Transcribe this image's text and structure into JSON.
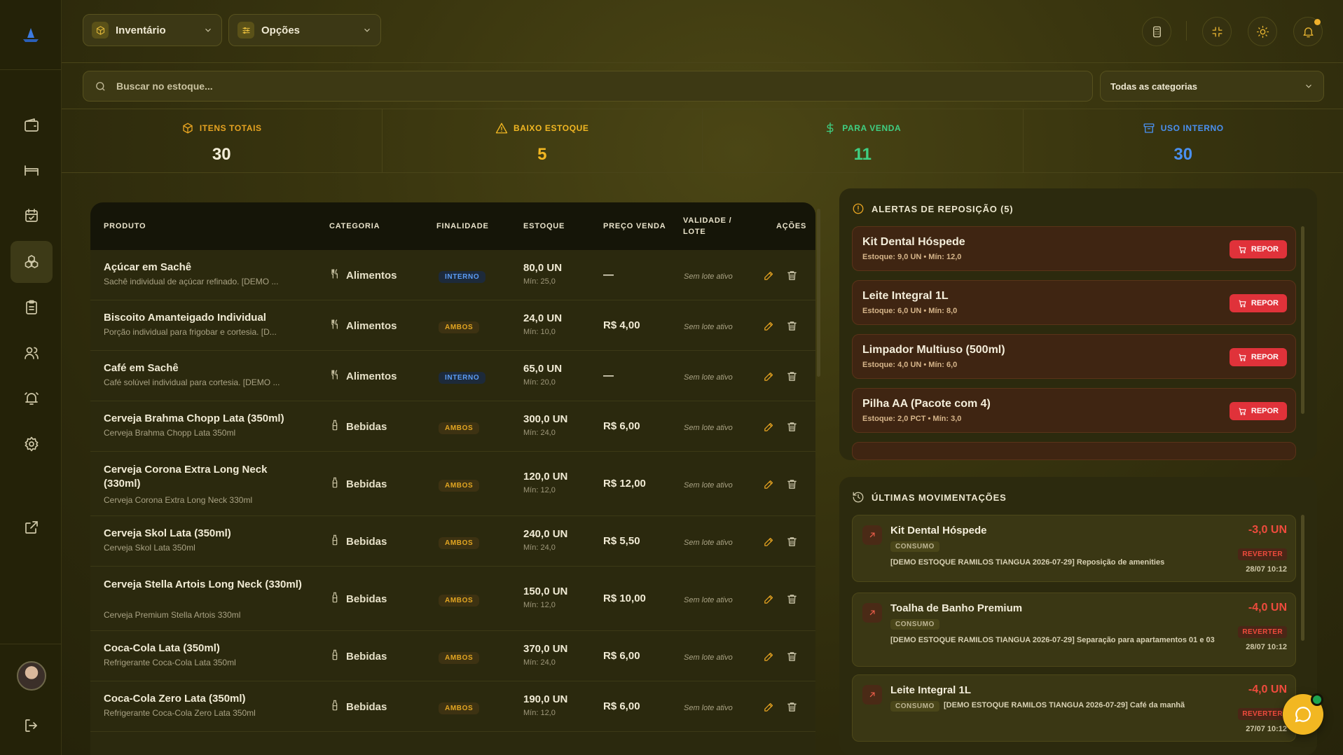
{
  "header": {
    "module_label": "Inventário",
    "options_label": "Opções"
  },
  "search": {
    "placeholder": "Buscar no estoque...",
    "category_filter": "Todas as categorias"
  },
  "stats": [
    {
      "label": "ITENS TOTAIS",
      "value": "30",
      "color": "#e6a321",
      "icon": "box-icon"
    },
    {
      "label": "BAIXO ESTOQUE",
      "value": "5",
      "color": "#f2b722",
      "icon": "warning-icon"
    },
    {
      "label": "PARA VENDA",
      "value": "11",
      "color": "#3fcf83",
      "icon": "dollar-icon"
    },
    {
      "label": "USO INTERNO",
      "value": "30",
      "color": "#4a90f0",
      "icon": "archive-icon"
    }
  ],
  "table": {
    "headers": {
      "produto": "PRODUTO",
      "categoria": "CATEGORIA",
      "finalidade": "FINALIDADE",
      "estoque": "ESTOQUE",
      "preco": "PREÇO VENDA",
      "validade": "VALIDADE /\nLOTE",
      "acoes": "AÇÕES"
    },
    "rows": [
      {
        "name": "Açúcar em Sachê",
        "desc": "Sachê individual de açúcar refinado. [DEMO ...",
        "category": "Alimentos",
        "cat_icon": "utensils-icon",
        "purpose": "INTERNO",
        "stock": "80,0 UN",
        "min": "Mín: 25,0",
        "price": "—",
        "lote": "Sem lote ativo"
      },
      {
        "name": "Biscoito Amanteigado Individual",
        "desc": "Porção individual para frigobar e cortesia. [D...",
        "category": "Alimentos",
        "cat_icon": "utensils-icon",
        "purpose": "AMBOS",
        "stock": "24,0 UN",
        "min": "Mín: 10,0",
        "price": "R$ 4,00",
        "lote": "Sem lote ativo"
      },
      {
        "name": "Café em Sachê",
        "desc": "Café solúvel individual para cortesia. [DEMO ...",
        "category": "Alimentos",
        "cat_icon": "utensils-icon",
        "purpose": "INTERNO",
        "stock": "65,0 UN",
        "min": "Mín: 20,0",
        "price": "—",
        "lote": "Sem lote ativo"
      },
      {
        "name": "Cerveja Brahma Chopp Lata (350ml)",
        "desc": "Cerveja Brahma Chopp Lata 350ml",
        "category": "Bebidas",
        "cat_icon": "bottle-icon",
        "purpose": "AMBOS",
        "stock": "300,0 UN",
        "min": "Mín: 24,0",
        "price": "R$ 6,00",
        "lote": "Sem lote ativo"
      },
      {
        "name": "Cerveja Corona Extra Long Neck (330ml)",
        "desc": "Cerveja Corona Extra Long Neck 330ml",
        "category": "Bebidas",
        "cat_icon": "bottle-icon",
        "purpose": "AMBOS",
        "stock": "120,0 UN",
        "min": "Mín: 12,0",
        "price": "R$ 12,00",
        "lote": "Sem lote ativo"
      },
      {
        "name": "Cerveja Skol Lata (350ml)",
        "desc": "Cerveja Skol Lata 350ml",
        "category": "Bebidas",
        "cat_icon": "bottle-icon",
        "purpose": "AMBOS",
        "stock": "240,0 UN",
        "min": "Mín: 24,0",
        "price": "R$ 5,50",
        "lote": "Sem lote ativo"
      },
      {
        "name": "Cerveja Stella Artois Long Neck (330ml)",
        "desc": "Cerveja Premium Stella Artois 330ml",
        "category": "Bebidas",
        "cat_icon": "bottle-icon",
        "purpose": "AMBOS",
        "stock": "150,0 UN",
        "min": "Mín: 12,0",
        "price": "R$ 10,00",
        "lote": "Sem lote ativo"
      },
      {
        "name": "Coca-Cola Lata (350ml)",
        "desc": "Refrigerante Coca-Cola Lata 350ml",
        "category": "Bebidas",
        "cat_icon": "bottle-icon",
        "purpose": "AMBOS",
        "stock": "370,0 UN",
        "min": "Mín: 24,0",
        "price": "R$ 6,00",
        "lote": "Sem lote ativo"
      },
      {
        "name": "Coca-Cola Zero Lata (350ml)",
        "desc": "Refrigerante Coca-Cola Zero Lata 350ml",
        "category": "Bebidas",
        "cat_icon": "bottle-icon",
        "purpose": "AMBOS",
        "stock": "190,0 UN",
        "min": "Mín: 12,0",
        "price": "R$ 6,00",
        "lote": "Sem lote ativo"
      }
    ]
  },
  "alerts": {
    "title": "ALERTAS DE REPOSIÇÃO (5)",
    "button_label": "REPOR",
    "items": [
      {
        "name": "Kit Dental Hóspede",
        "detail": "Estoque: 9,0 UN • Mín: 12,0"
      },
      {
        "name": "Leite Integral 1L",
        "detail": "Estoque: 6,0 UN • Mín: 8,0"
      },
      {
        "name": "Limpador Multiuso (500ml)",
        "detail": "Estoque: 4,0 UN • Mín: 6,0"
      },
      {
        "name": "Pilha AA (Pacote com 4)",
        "detail": "Estoque: 2,0 PCT • Mín: 3,0"
      }
    ]
  },
  "movements": {
    "title": "ÚLTIMAS MOVIMENTAÇÕES",
    "revert_label": "REVERTER",
    "items": [
      {
        "name": "Kit Dental Hóspede",
        "type": "CONSUMO",
        "note": "[DEMO ESTOQUE RAMILOS TIANGUA 2026-07-29] Reposição de amenities",
        "qty": "-3,0 UN",
        "date": "28/07 10:12"
      },
      {
        "name": "Toalha de Banho Premium",
        "type": "CONSUMO",
        "note": "[DEMO ESTOQUE RAMILOS TIANGUA 2026-07-29] Separação para apartamentos 01 e 03",
        "qty": "-4,0 UN",
        "date": "28/07 10:12"
      },
      {
        "name": "Leite Integral 1L",
        "type": "CONSUMO",
        "note": "[DEMO ESTOQUE RAMILOS TIANGUA 2026-07-29] Café da manhã",
        "qty": "-4,0 UN",
        "date": "27/07 10:12"
      }
    ]
  }
}
